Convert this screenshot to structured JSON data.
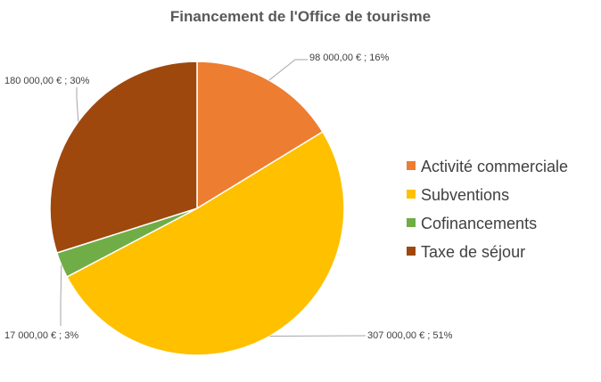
{
  "chart_data": {
    "type": "pie",
    "title": "Financement de l'Office de tourisme",
    "categories": [
      "Activité commerciale",
      "Subventions",
      "Cofinancements",
      "Taxe de séjour"
    ],
    "values": [
      98000,
      307000,
      17000,
      180000
    ],
    "data_labels": [
      "98 000,00 € ; 16%",
      "307 000,00 € ; 51%",
      "17 000,00 € ; 3%",
      "180 000,00 € ; 30%"
    ],
    "colors": [
      "#ED7D31",
      "#FFC000",
      "#70AD47",
      "#9E480E"
    ],
    "legend_placement": "right",
    "start_angle_deg": 0,
    "direction": "clockwise"
  }
}
